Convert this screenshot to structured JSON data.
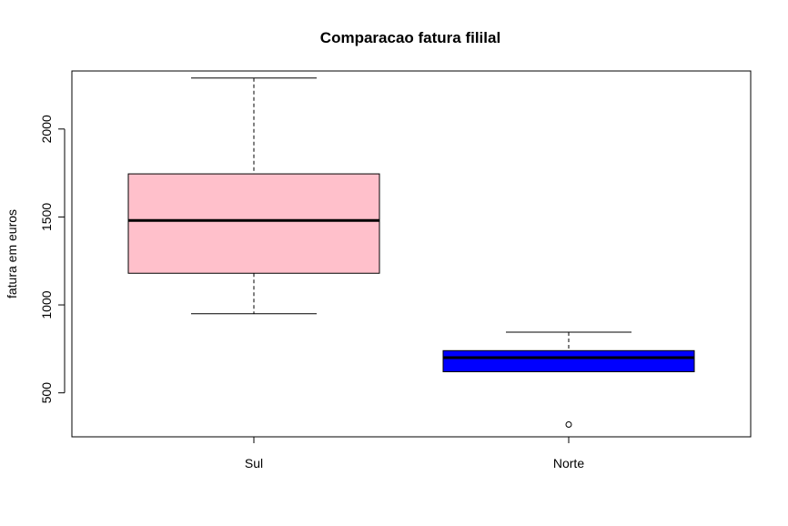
{
  "chart_data": {
    "type": "boxplot",
    "title": "Comparacao fatura fililal",
    "xlabel": "",
    "ylabel": "fatura em euros",
    "ylim": [
      250,
      2330
    ],
    "yticks": [
      500,
      1000,
      1500,
      2000
    ],
    "ytick_labels": [
      "500",
      "1000",
      "1500",
      "2000"
    ],
    "categories": [
      "Sul",
      "Norte"
    ],
    "grid": false,
    "boxes": [
      {
        "category": "Sul",
        "color": "#FFC0CB",
        "whisker_low": 950,
        "q1": 1180,
        "median": 1480,
        "q3": 1745,
        "whisker_high": 2290,
        "outliers": []
      },
      {
        "category": "Norte",
        "color": "#0000FF",
        "whisker_low": 620,
        "q1": 620,
        "median": 700,
        "q3": 740,
        "whisker_high": 845,
        "outliers": [
          320
        ]
      }
    ]
  }
}
